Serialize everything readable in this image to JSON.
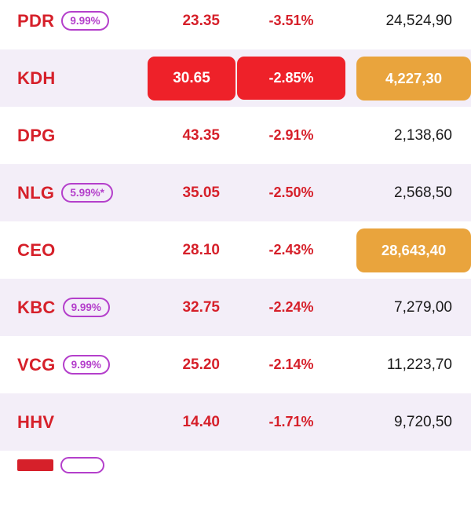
{
  "colors": {
    "red_box": "#ee2129",
    "orange_box": "#e9a43d",
    "text_red": "#d6202a",
    "badge_purple": "#b43fcb",
    "row_shade": "#f3eef8",
    "volume_text": "#1b1b1b"
  },
  "watchlist": {
    "columns": [
      "ticker",
      "price",
      "change_percent",
      "volume"
    ],
    "rows": [
      {
        "ticker": "PDR",
        "badge": "9.99%",
        "price": "23.35",
        "change": "-3.51%",
        "volume": "24,524,90"
      },
      {
        "ticker": "KDH",
        "badge": null,
        "price": "30.65",
        "change": "-2.85%",
        "volume": "4,227,30",
        "highlight": {
          "price": "red-box",
          "change": "red-box",
          "volume": "orange-box"
        }
      },
      {
        "ticker": "DPG",
        "badge": null,
        "price": "43.35",
        "change": "-2.91%",
        "volume": "2,138,60"
      },
      {
        "ticker": "NLG",
        "badge": "5.99%*",
        "price": "35.05",
        "change": "-2.50%",
        "volume": "2,568,50"
      },
      {
        "ticker": "CEO",
        "badge": null,
        "price": "28.10",
        "change": "-2.43%",
        "volume": "28,643,40",
        "highlight": {
          "volume": "orange-box"
        }
      },
      {
        "ticker": "KBC",
        "badge": "9.99%",
        "price": "32.75",
        "change": "-2.24%",
        "volume": "7,279,00"
      },
      {
        "ticker": "VCG",
        "badge": "9.99%",
        "price": "25.20",
        "change": "-2.14%",
        "volume": "11,223,70"
      },
      {
        "ticker": "HHV",
        "badge": null,
        "price": "14.40",
        "change": "-1.71%",
        "volume": "9,720,50"
      }
    ],
    "partial_row": {
      "clipped": true,
      "has_badge_outline": true
    }
  }
}
